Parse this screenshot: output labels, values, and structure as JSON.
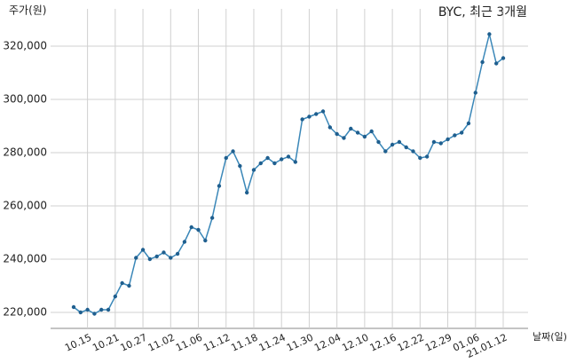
{
  "chart_data": {
    "type": "line",
    "title": "BYC, 최근 3개월",
    "y_label": "주가(원)",
    "x_label": "날짜(일)",
    "categories": [
      null,
      null,
      "10.15",
      null,
      null,
      null,
      "10.21",
      null,
      null,
      null,
      "10.27",
      null,
      null,
      null,
      "11.02",
      null,
      null,
      null,
      "11.06",
      null,
      null,
      null,
      "11.12",
      null,
      null,
      null,
      "11.18",
      null,
      null,
      null,
      "11.24",
      null,
      null,
      null,
      "11.30",
      null,
      null,
      null,
      "12.04",
      null,
      null,
      null,
      "12.10",
      null,
      null,
      null,
      "12.16",
      null,
      null,
      null,
      "12.22",
      null,
      null,
      null,
      "12.29",
      null,
      null,
      null,
      "01.06",
      null,
      null,
      null,
      "21.01.12"
    ],
    "series": [
      {
        "name": "BYC",
        "color": "#3a87b8",
        "values": [
          222000,
          220000,
          221000,
          219500,
          221000,
          221000,
          226000,
          231000,
          230000,
          240500,
          243500,
          240000,
          241000,
          242500,
          240500,
          242000,
          246500,
          252000,
          251000,
          247000,
          255500,
          267500,
          278000,
          280500,
          275000,
          265000,
          273500,
          276000,
          278000,
          276000,
          277500,
          278500,
          276500,
          292500,
          293500,
          294500,
          295500,
          289500,
          287000,
          285500,
          289000,
          287500,
          286000,
          288000,
          284000,
          280500,
          283000,
          284000,
          282000,
          280500,
          278000,
          278500,
          284000,
          283500,
          285000,
          286500,
          287500,
          291000,
          302500,
          314000,
          324500,
          313500,
          315500
        ]
      }
    ],
    "ylim": [
      214000,
      334000
    ],
    "yticks": [
      {
        "value": 220000,
        "label": "220,000"
      },
      {
        "value": 240000,
        "label": "240,000"
      },
      {
        "value": 260000,
        "label": "260,000"
      },
      {
        "value": 280000,
        "label": "280,000"
      },
      {
        "value": 300000,
        "label": "300,000"
      },
      {
        "value": 320000,
        "label": "320,000"
      }
    ],
    "grid": true
  }
}
